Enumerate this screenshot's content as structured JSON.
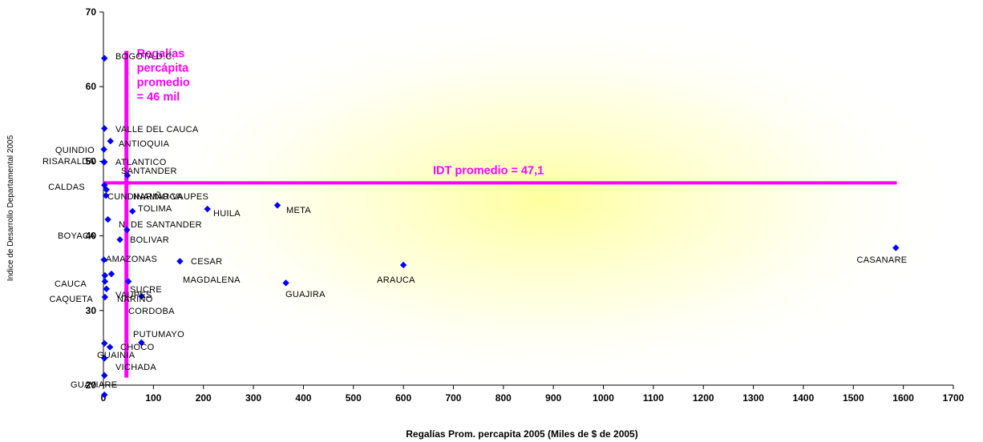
{
  "colors": {
    "marker": "#0000ff",
    "reference": "#ff00ff",
    "glow": "#ffff99",
    "axis": "#000000"
  },
  "chart_data": {
    "type": "scatter",
    "title": "",
    "xlabel": "Regalías Prom. percapita 2005 (Miles de $ de 2005)",
    "ylabel": "Indice de Desarrollo Departamental 2005",
    "xlim": [
      0,
      1700
    ],
    "ylim": [
      20,
      70
    ],
    "x_ticks": [
      0,
      100,
      200,
      300,
      400,
      500,
      600,
      700,
      800,
      900,
      1000,
      1100,
      1200,
      1300,
      1400,
      1500,
      1600,
      1700
    ],
    "y_ticks": [
      20,
      30,
      40,
      50,
      60,
      70
    ],
    "grid": false,
    "legend": "none",
    "points": [
      {
        "label": "BOGOTA D.C.",
        "x": 2,
        "y": 63.8
      },
      {
        "label": "VALLE DEL CAUCA",
        "x": 2,
        "y": 54.4
      },
      {
        "label": "ANTIOQUIA",
        "x": 14,
        "y": 52.7
      },
      {
        "label": "QUINDIO",
        "x": 1,
        "y": 51.6
      },
      {
        "label": "RISARALDA",
        "x": 1,
        "y": 49.9
      },
      {
        "label": "ATLANTICO",
        "x": 2,
        "y": 49.9
      },
      {
        "label": "SANTANDER",
        "x": 48,
        "y": 48.1
      },
      {
        "label": "CALDAS",
        "x": 2,
        "y": 46.8
      },
      {
        "label": "CUNDINAMARCA",
        "x": 6,
        "y": 46.2
      },
      {
        "label": "NARIÑO-VAUPES",
        "x": 5,
        "y": 45.4
      },
      {
        "label": "META",
        "x": 348,
        "y": 44.1
      },
      {
        "label": "HUILA",
        "x": 208,
        "y": 43.6
      },
      {
        "label": "TOLIMA",
        "x": 58,
        "y": 43.3
      },
      {
        "label": "N. DE SANTANDER",
        "x": 9,
        "y": 42.2
      },
      {
        "label": "BOYACA",
        "x": 47,
        "y": 40.8
      },
      {
        "label": "BOLIVAR",
        "x": 33,
        "y": 39.5
      },
      {
        "label": "CASANARE",
        "x": 1585,
        "y": 38.4
      },
      {
        "label": "AMAZONAS",
        "x": 1,
        "y": 36.8
      },
      {
        "label": "CESAR",
        "x": 153,
        "y": 36.6
      },
      {
        "label": "ARAUCA",
        "x": 600,
        "y": 36.1
      },
      {
        "label": "NARIÑO",
        "x": 16,
        "y": 34.9
      },
      {
        "label": "VAUPES",
        "x": 3,
        "y": 34.7
      },
      {
        "label": "CAUCA",
        "x": 3,
        "y": 33.9
      },
      {
        "label": "MAGDALENA",
        "x": 50,
        "y": 33.9
      },
      {
        "label": "GUAJIRA",
        "x": 365,
        "y": 33.7
      },
      {
        "label": "SUCRE",
        "x": 6,
        "y": 32.9
      },
      {
        "label": "CAQUETA",
        "x": 3,
        "y": 31.8
      },
      {
        "label": "CORDOBA",
        "x": 76,
        "y": 31.9
      },
      {
        "label": "PUTUMAYO",
        "x": 76,
        "y": 25.7
      },
      {
        "label": "CHOCO",
        "x": 2,
        "y": 25.6
      },
      {
        "label": "CHOCO",
        "x": 13,
        "y": 25.1
      },
      {
        "label": "GUAINIA",
        "x": 2,
        "y": 23.6
      },
      {
        "label": "VICHADA",
        "x": 2,
        "y": 21.3
      },
      {
        "label": "GUAVIARE",
        "x": 2,
        "y": 18.7
      }
    ],
    "reference_lines": [
      {
        "orientation": "vertical",
        "value": 46,
        "label": "Regalías\npercápita\npromedio\n= 46 mil"
      },
      {
        "orientation": "horizontal",
        "value": 47.1,
        "label": "IDT promedio = 47,1"
      }
    ]
  }
}
